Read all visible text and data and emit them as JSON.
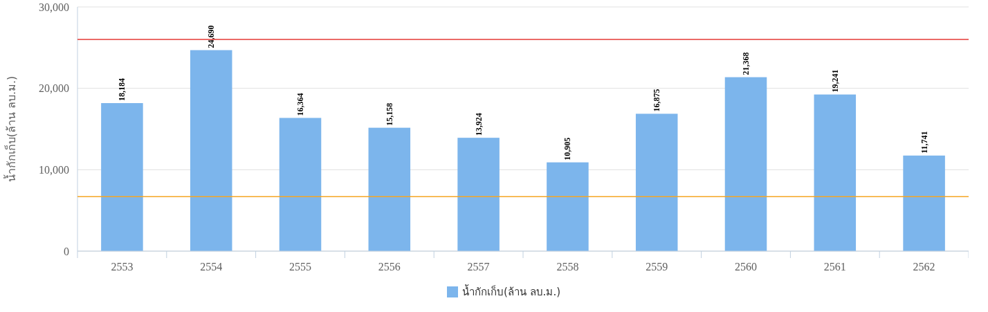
{
  "chart_data": {
    "type": "bar",
    "ylabel": "น้ำกักเก็บ(ล้าน ลบ.ม.)",
    "categories": [
      "2553",
      "2554",
      "2555",
      "2556",
      "2557",
      "2558",
      "2559",
      "2560",
      "2561",
      "2562"
    ],
    "series": [
      {
        "name": "น้ำกักเก็บ(ล้าน ลบ.ม.)",
        "color": "#7cb5ec",
        "values": [
          18184,
          24690,
          16364,
          15158,
          13924,
          10905,
          16875,
          21368,
          19241,
          11741
        ],
        "value_labels": [
          "18,184",
          "24,690",
          "16,364",
          "15,158",
          "13,924",
          "10,905",
          "16,875",
          "21,368",
          "19,241",
          "11,741"
        ]
      }
    ],
    "ylim": [
      0,
      30000
    ],
    "yticks": [
      {
        "value": 0,
        "label": "0"
      },
      {
        "value": 10000,
        "label": "10,000"
      },
      {
        "value": 20000,
        "label": "20,000"
      },
      {
        "value": 30000,
        "label": "30,000"
      }
    ],
    "grid": "y",
    "legend": "bottom",
    "ref_lines": [
      {
        "axis": "y",
        "value": 26000,
        "color": "#e53935"
      },
      {
        "axis": "y",
        "value": 6700,
        "color": "#f5a623"
      }
    ]
  }
}
